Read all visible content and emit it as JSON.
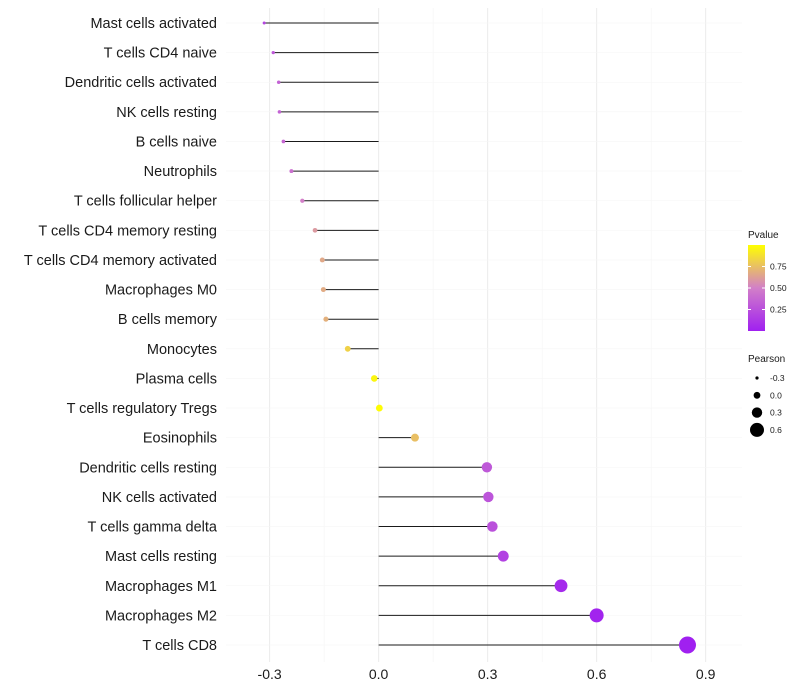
{
  "chart_data": {
    "type": "lollipop",
    "title": "",
    "xlabel": "",
    "ylabel": "",
    "xlim": [
      -0.42,
      1.0
    ],
    "xticks": [
      -0.3,
      0.0,
      0.3,
      0.6,
      0.9
    ],
    "xtick_labels": [
      "-0.3",
      "0.0",
      "0.3",
      "0.6",
      "0.9"
    ],
    "grid": true,
    "categories": [
      "Mast cells activated",
      "T cells CD4 naive",
      "Dendritic cells activated",
      "NK cells resting",
      "B cells naive",
      "Neutrophils",
      "T cells follicular helper",
      "T cells CD4 memory resting",
      "T cells CD4 memory activated",
      "Macrophages M0",
      "B cells memory",
      "Monocytes",
      "Plasma cells",
      "T cells regulatory  Tregs",
      "Eosinophils",
      "Dendritic cells resting",
      "NK cells activated",
      "T cells gamma delta",
      "Mast cells resting",
      "Macrophages M1",
      "Macrophages M2",
      "T cells CD8"
    ],
    "pearson": [
      -0.315,
      -0.29,
      -0.275,
      -0.273,
      -0.262,
      -0.24,
      -0.21,
      -0.175,
      -0.155,
      -0.152,
      -0.145,
      -0.085,
      -0.012,
      0.002,
      0.1,
      0.298,
      0.302,
      0.313,
      0.343,
      0.502,
      0.6,
      0.85
    ],
    "pvalue": [
      0.2,
      0.3,
      0.35,
      0.35,
      0.37,
      0.42,
      0.5,
      0.6,
      0.66,
      0.67,
      0.69,
      0.82,
      0.96,
      0.99,
      0.75,
      0.3,
      0.28,
      0.26,
      0.18,
      0.05,
      0.02,
      0.0
    ],
    "legends": {
      "color": {
        "title": "Pvalue",
        "breaks": [
          0.75,
          0.5,
          0.25
        ],
        "labels": [
          "0.75",
          "0.50",
          "0.25"
        ],
        "range": [
          0.0,
          1.0
        ],
        "low_color": "#a020f0",
        "mid_color": "#d27fc8",
        "high_color": "#ffff00"
      },
      "size": {
        "title": "Pearson",
        "breaks": [
          -0.3,
          0.0,
          0.3,
          0.6
        ],
        "labels": [
          "-0.3",
          "0.0",
          "0.3",
          "0.6"
        ]
      }
    }
  }
}
